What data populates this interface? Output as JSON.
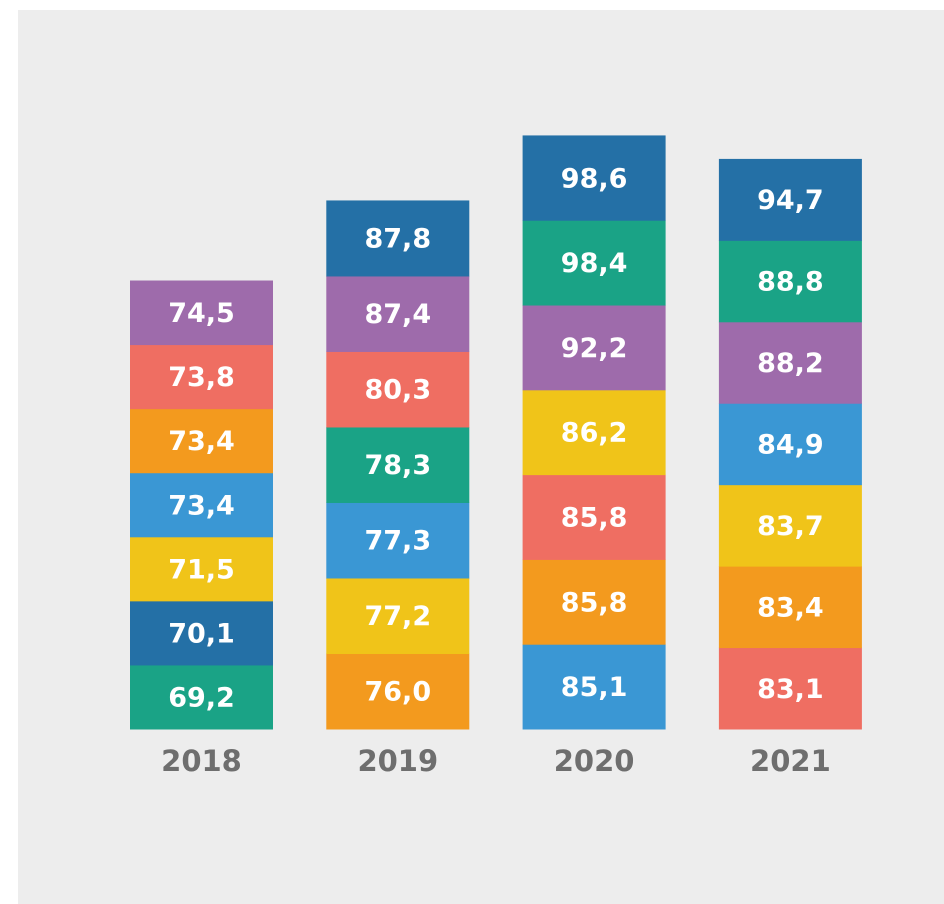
{
  "chart_data": {
    "type": "stacked_blocks",
    "categories": [
      "2018",
      "2019",
      "2020",
      "2021"
    ],
    "columns": [
      {
        "values": [
          69.2,
          70.1,
          71.5,
          73.4,
          73.4,
          73.8,
          74.5
        ],
        "value_labels": [
          "69,2",
          "70,1",
          "71,5",
          "73,4",
          "73,4",
          "73,8",
          "74,5"
        ],
        "colors": [
          "#1aa386",
          "#2470a6",
          "#f0c419",
          "#3a97d4",
          "#f39a1e",
          "#ef6e62",
          "#9e6bab"
        ]
      },
      {
        "values": [
          76.0,
          77.2,
          77.3,
          78.3,
          80.3,
          87.4,
          87.8
        ],
        "value_labels": [
          "76,0",
          "77,2",
          "77,3",
          "78,3",
          "80,3",
          "87,4",
          "87,8"
        ],
        "colors": [
          "#f39a1e",
          "#f0c419",
          "#3a97d4",
          "#1aa386",
          "#ef6e62",
          "#9e6bab",
          "#2470a6"
        ]
      },
      {
        "values": [
          85.1,
          85.8,
          85.8,
          86.2,
          92.2,
          98.4,
          98.6
        ],
        "value_labels": [
          "85,1",
          "85,8",
          "85,8",
          "86,2",
          "92,2",
          "98,4",
          "98,6"
        ],
        "colors": [
          "#3a97d4",
          "#f39a1e",
          "#ef6e62",
          "#f0c419",
          "#9e6bab",
          "#1aa386",
          "#2470a6"
        ]
      },
      {
        "values": [
          83.1,
          83.4,
          83.7,
          84.9,
          88.2,
          88.8,
          94.7
        ],
        "value_labels": [
          "83,1",
          "83,4",
          "83,7",
          "84,9",
          "88,2",
          "88,8",
          "94,7"
        ],
        "colors": [
          "#ef6e62",
          "#f39a1e",
          "#f0c419",
          "#3a97d4",
          "#9e6bab",
          "#1aa386",
          "#2470a6"
        ]
      }
    ]
  }
}
